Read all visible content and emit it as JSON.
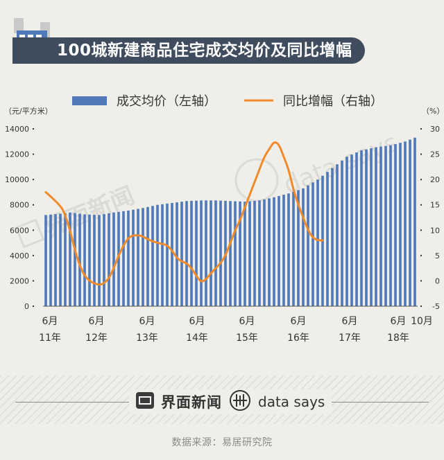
{
  "header": {
    "title": "100城新建商品住宅成交均价及同比增幅",
    "icon": "building-icon"
  },
  "chart_data": {
    "type": "bar+line",
    "left_unit": "（元/平方米）",
    "right_unit": "（%）",
    "legend": [
      {
        "name": "成交均价（左轴）",
        "color": "#4f79b8",
        "kind": "bar"
      },
      {
        "name": "同比增幅（右轴）",
        "color": "#f08a2a",
        "kind": "line"
      }
    ],
    "left_axis": {
      "min": 0,
      "max": 14000,
      "ticks": [
        "0",
        "2000",
        "4000",
        "6000",
        "8000",
        "10000",
        "12000",
        "14000"
      ]
    },
    "right_axis": {
      "min": -5,
      "max": 30,
      "ticks": [
        "-5",
        "0",
        "5",
        "10",
        "15",
        "20",
        "25",
        "30"
      ]
    },
    "x_labels": [
      {
        "month": "6月",
        "year": "11年"
      },
      {
        "month": "6月",
        "year": "12年"
      },
      {
        "month": "6月",
        "year": "13年"
      },
      {
        "month": "6月",
        "year": "14年"
      },
      {
        "month": "6月",
        "year": "15年"
      },
      {
        "month": "6月",
        "year": "16年"
      },
      {
        "month": "6月",
        "year": "17年"
      },
      {
        "month": "6月",
        "year": "18年"
      },
      {
        "month": "10月",
        "year": ""
      }
    ],
    "price_keypoints": [
      [
        0,
        7200
      ],
      [
        3,
        7300
      ],
      [
        5,
        7400
      ],
      [
        8,
        7250
      ],
      [
        11,
        7200
      ],
      [
        14,
        7400
      ],
      [
        17,
        7550
      ],
      [
        20,
        7750
      ],
      [
        23,
        8000
      ],
      [
        26,
        8150
      ],
      [
        29,
        8300
      ],
      [
        32,
        8350
      ],
      [
        35,
        8350
      ],
      [
        38,
        8300
      ],
      [
        41,
        8250
      ],
      [
        44,
        8350
      ],
      [
        47,
        8600
      ],
      [
        50,
        8900
      ],
      [
        53,
        9300
      ],
      [
        56,
        10000
      ],
      [
        59,
        10900
      ],
      [
        62,
        11800
      ],
      [
        65,
        12300
      ],
      [
        68,
        12550
      ],
      [
        71,
        12700
      ],
      [
        74,
        13000
      ],
      [
        76,
        13300
      ]
    ],
    "yoy_keypoints": [
      [
        0,
        17.5
      ],
      [
        3,
        15
      ],
      [
        4,
        13
      ],
      [
        5,
        10
      ],
      [
        6,
        6
      ],
      [
        7,
        3
      ],
      [
        8,
        1
      ],
      [
        9,
        0
      ],
      [
        10,
        -0.5
      ],
      [
        11,
        -0.8
      ],
      [
        12,
        -0.5
      ],
      [
        13,
        0.5
      ],
      [
        14,
        2.5
      ],
      [
        15,
        5
      ],
      [
        16,
        7
      ],
      [
        17,
        8.5
      ],
      [
        18,
        9
      ],
      [
        19,
        9
      ],
      [
        20,
        8.8
      ],
      [
        21,
        8.2
      ],
      [
        22,
        7.8
      ],
      [
        23,
        7.5
      ],
      [
        24,
        7.3
      ],
      [
        25,
        7
      ],
      [
        26,
        6
      ],
      [
        27,
        4.5
      ],
      [
        28,
        3.8
      ],
      [
        29,
        3.5
      ],
      [
        30,
        2.5
      ],
      [
        31,
        1
      ],
      [
        32,
        -0.3
      ],
      [
        33,
        0.3
      ],
      [
        34,
        1.5
      ],
      [
        35,
        2.5
      ],
      [
        36,
        3.5
      ],
      [
        37,
        5
      ],
      [
        38,
        7.5
      ],
      [
        39,
        10
      ],
      [
        40,
        12
      ],
      [
        41,
        14.5
      ],
      [
        42,
        17
      ],
      [
        43,
        19.5
      ],
      [
        44,
        22
      ],
      [
        45,
        24.5
      ],
      [
        46,
        26
      ],
      [
        47,
        27.5
      ],
      [
        48,
        27
      ],
      [
        49,
        24.5
      ],
      [
        50,
        22
      ],
      [
        51,
        18
      ],
      [
        52,
        15
      ],
      [
        53,
        12.5
      ],
      [
        54,
        10
      ],
      [
        55,
        8.5
      ],
      [
        56,
        8
      ],
      [
        57,
        8
      ]
    ],
    "n_months": 77
  },
  "footer": {
    "brand": "界面新闻",
    "brand_icon": "jiemian-logo-icon",
    "datasays": "data says",
    "datasays_icon": "datasays-logo-icon",
    "source": "数据来源：易居研究院"
  },
  "watermark": {
    "brand": "界面新闻",
    "datasays": "data says"
  }
}
